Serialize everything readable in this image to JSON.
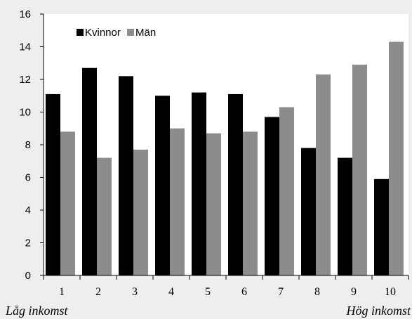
{
  "chart_data": {
    "type": "bar",
    "categories": [
      "1",
      "2",
      "3",
      "4",
      "5",
      "6",
      "7",
      "8",
      "9",
      "10"
    ],
    "series": [
      {
        "name": "Kvinnor",
        "color": "#000000",
        "values": [
          11.1,
          12.7,
          12.2,
          11.0,
          11.2,
          11.1,
          9.7,
          7.8,
          7.2,
          5.9
        ]
      },
      {
        "name": "Män",
        "color": "#8c8c8c",
        "values": [
          8.8,
          7.2,
          7.7,
          9.0,
          8.7,
          8.8,
          10.3,
          12.3,
          12.9,
          14.3
        ]
      }
    ],
    "ylim": [
      0,
      16
    ],
    "yticks": [
      0,
      2,
      4,
      6,
      8,
      10,
      12,
      14,
      16
    ],
    "legend_position": "top-left",
    "grid": false
  },
  "captions": {
    "left": "Låg inkomst",
    "right": "Hög inkomst"
  }
}
